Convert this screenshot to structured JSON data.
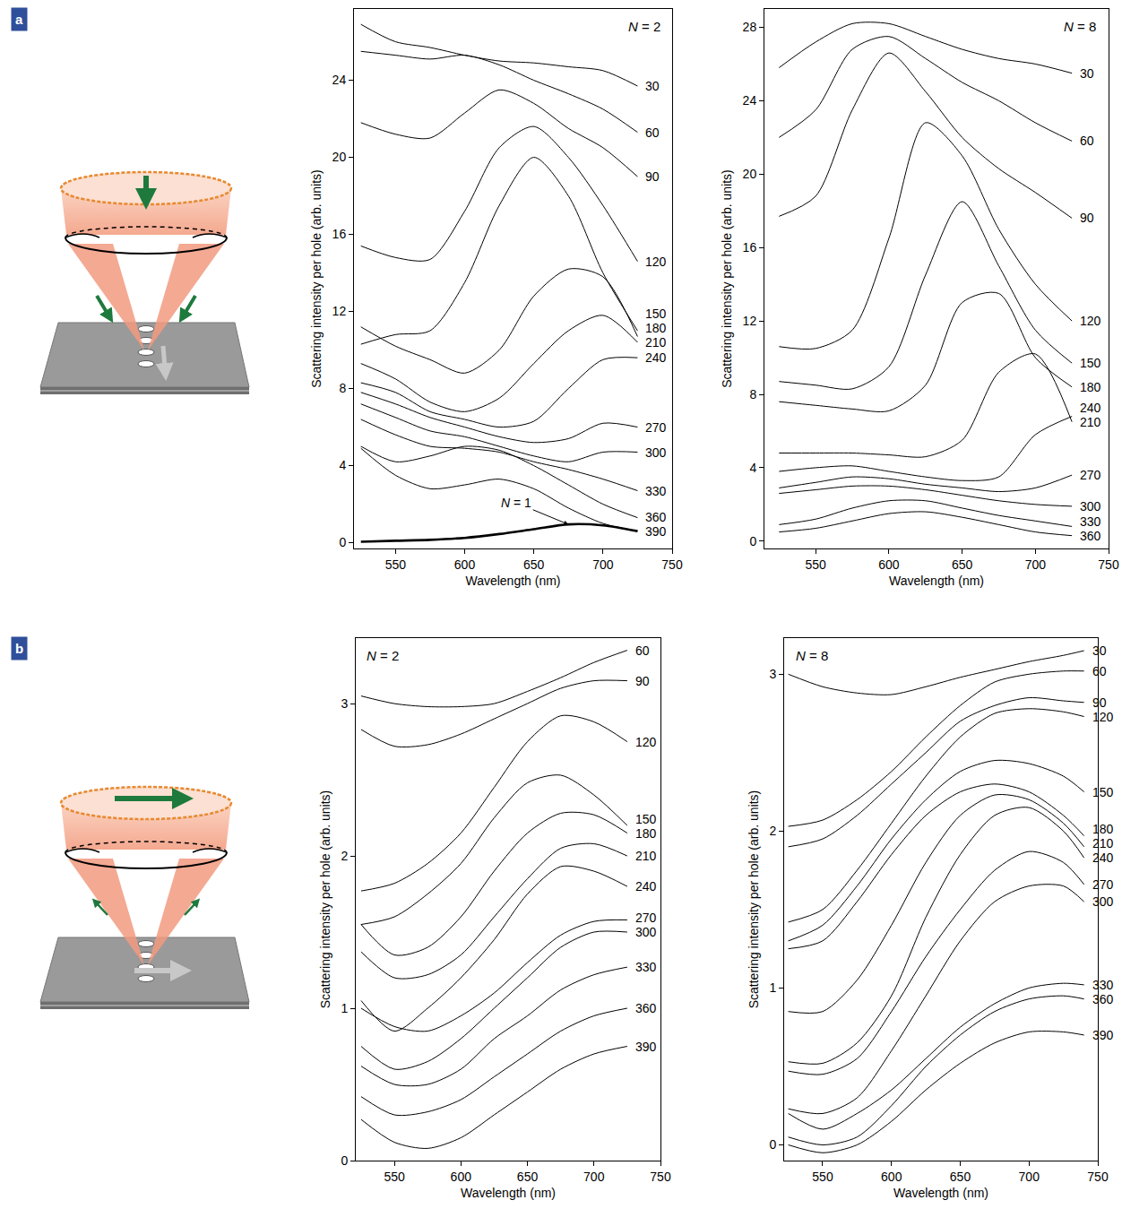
{
  "chart_data": [
    {
      "type": "line",
      "panel": "a",
      "title": "N = 2",
      "x_label": "Wavelength (nm)",
      "y_label": "Scattering intensity per hole (arb. units)",
      "x": [
        525,
        550,
        575,
        600,
        625,
        650,
        675,
        700,
        725
      ],
      "xlim": [
        520,
        750
      ],
      "xticks": [
        550,
        600,
        650,
        700,
        750
      ],
      "ylim": [
        -0.3,
        27.7
      ],
      "yticks": [
        0,
        4,
        8,
        12,
        16,
        20,
        24
      ],
      "grid": false,
      "series": [
        {
          "name": "30",
          "color": "#000000",
          "values": [
            26.9,
            26.0,
            25.7,
            25.3,
            25.0,
            24.9,
            24.7,
            24.5,
            23.7
          ]
        },
        {
          "name": "60",
          "color": "#000000",
          "values": [
            25.5,
            25.3,
            25.1,
            25.3,
            24.8,
            24.0,
            23.3,
            22.5,
            21.3
          ]
        },
        {
          "name": "90",
          "color": "#000000",
          "values": [
            21.8,
            21.2,
            21.0,
            22.3,
            23.5,
            22.8,
            21.5,
            20.5,
            19.0
          ]
        },
        {
          "name": "120",
          "color": "#000000",
          "values": [
            15.4,
            14.8,
            14.7,
            17.2,
            20.5,
            21.6,
            20.0,
            17.5,
            14.6
          ]
        },
        {
          "name": "150",
          "color": "#000000",
          "values": [
            10.3,
            10.8,
            11.0,
            13.5,
            17.5,
            20.0,
            18.0,
            14.0,
            11.0
          ]
        },
        {
          "name": "180",
          "color": "#000000",
          "values": [
            11.2,
            10.2,
            9.5,
            8.8,
            10.0,
            12.8,
            14.2,
            13.8,
            10.7
          ]
        },
        {
          "name": "210",
          "color": "#000000",
          "values": [
            9.3,
            8.5,
            7.3,
            6.8,
            7.5,
            9.3,
            11.0,
            11.8,
            10.4
          ]
        },
        {
          "name": "240",
          "color": "#000000",
          "values": [
            8.3,
            7.8,
            6.8,
            6.4,
            6.0,
            6.3,
            8.0,
            9.5,
            9.6
          ]
        },
        {
          "name": "270",
          "color": "#000000",
          "values": [
            7.8,
            7.2,
            6.5,
            6.0,
            5.5,
            5.2,
            5.4,
            6.2,
            6.0
          ]
        },
        {
          "name": "300",
          "color": "#000000",
          "values": [
            7.2,
            6.5,
            5.8,
            5.5,
            5.0,
            4.5,
            4.2,
            4.7,
            4.7
          ]
        },
        {
          "name": "330",
          "color": "#000000",
          "values": [
            6.4,
            5.6,
            5.0,
            4.9,
            4.7,
            4.2,
            3.8,
            3.3,
            2.7
          ]
        },
        {
          "name": "360",
          "color": "#000000",
          "values": [
            5.0,
            4.2,
            4.5,
            5.0,
            4.8,
            4.0,
            3.0,
            2.0,
            1.3
          ]
        },
        {
          "name": "390",
          "color": "#000000",
          "values": [
            4.9,
            3.5,
            2.8,
            3.0,
            3.3,
            2.8,
            1.8,
            1.0,
            0.6
          ]
        },
        {
          "name": "N = 1",
          "color": "#000000",
          "line_style": "thick",
          "values": [
            0.05,
            0.1,
            0.15,
            0.25,
            0.45,
            0.7,
            0.95,
            0.9,
            0.6
          ]
        }
      ]
    },
    {
      "type": "line",
      "title": "N = 8",
      "x_label": "Wavelength (nm)",
      "y_label": "Scattering intensity per hole (arb. units)",
      "x": [
        525,
        550,
        575,
        600,
        625,
        650,
        675,
        700,
        725
      ],
      "xlim": [
        515,
        750
      ],
      "xticks": [
        550,
        600,
        650,
        700,
        750
      ],
      "ylim": [
        -0.4,
        29
      ],
      "yticks": [
        0,
        4,
        8,
        12,
        16,
        20,
        24,
        28
      ],
      "grid": false,
      "series": [
        {
          "name": "30",
          "color": "#000000",
          "values": [
            25.8,
            27.2,
            28.2,
            28.2,
            27.5,
            26.8,
            26.3,
            26.0,
            25.5
          ]
        },
        {
          "name": "60",
          "color": "#000000",
          "values": [
            22.0,
            23.5,
            26.8,
            27.5,
            26.3,
            25.0,
            24.0,
            22.8,
            21.8
          ]
        },
        {
          "name": "90",
          "color": "#000000",
          "values": [
            17.7,
            18.8,
            23.5,
            26.6,
            24.5,
            22.0,
            20.3,
            19.0,
            17.6
          ]
        },
        {
          "name": "120",
          "color": "#000000",
          "values": [
            10.6,
            10.5,
            11.5,
            16.5,
            22.8,
            21.0,
            17.0,
            14.0,
            12.0
          ]
        },
        {
          "name": "150",
          "color": "#000000",
          "values": [
            8.7,
            8.5,
            8.3,
            9.5,
            14.5,
            18.5,
            15.0,
            11.5,
            9.7
          ]
        },
        {
          "name": "180",
          "color": "#000000",
          "values": [
            7.6,
            7.4,
            7.2,
            7.1,
            8.5,
            13.0,
            13.5,
            10.0,
            8.4
          ]
        },
        {
          "name": "210",
          "color": "#000000",
          "values": [
            4.8,
            4.8,
            4.8,
            4.7,
            4.6,
            5.5,
            9.2,
            10.2,
            6.5
          ]
        },
        {
          "name": "240",
          "color": "#000000",
          "values": [
            3.8,
            4.0,
            4.1,
            3.8,
            3.5,
            3.3,
            3.5,
            5.8,
            6.8
          ]
        },
        {
          "name": "270",
          "color": "#000000",
          "values": [
            2.9,
            3.2,
            3.5,
            3.4,
            3.1,
            2.9,
            2.7,
            2.9,
            3.6
          ]
        },
        {
          "name": "300",
          "color": "#000000",
          "values": [
            2.6,
            2.8,
            3.0,
            3.0,
            2.8,
            2.5,
            2.2,
            2.0,
            1.9
          ]
        },
        {
          "name": "330",
          "color": "#000000",
          "values": [
            0.9,
            1.2,
            1.8,
            2.2,
            2.2,
            1.8,
            1.4,
            1.1,
            0.8
          ]
        },
        {
          "name": "360",
          "color": "#000000",
          "values": [
            0.5,
            0.7,
            1.1,
            1.5,
            1.6,
            1.3,
            0.9,
            0.5,
            0.3
          ]
        }
      ]
    },
    {
      "type": "line",
      "panel": "b",
      "title": "N = 2",
      "x_label": "Wavelength (nm)",
      "y_label": "Scattering intensity per hole (arb. units)",
      "x": [
        525,
        550,
        575,
        600,
        625,
        650,
        675,
        700,
        725
      ],
      "xlim": [
        521,
        750
      ],
      "xticks": [
        550,
        600,
        650,
        700,
        750
      ],
      "ylim": [
        0,
        3.43
      ],
      "yticks": [
        0,
        1,
        2,
        3
      ],
      "grid": false,
      "series": [
        {
          "name": "60",
          "color": "#000000",
          "values": [
            3.05,
            3.0,
            2.98,
            2.98,
            3.0,
            3.08,
            3.17,
            3.27,
            3.35
          ]
        },
        {
          "name": "90",
          "color": "#000000",
          "values": [
            2.83,
            2.72,
            2.73,
            2.8,
            2.9,
            3.0,
            3.1,
            3.15,
            3.15
          ]
        },
        {
          "name": "120",
          "color": "#000000",
          "values": [
            1.77,
            1.82,
            1.95,
            2.15,
            2.45,
            2.75,
            2.92,
            2.88,
            2.75
          ]
        },
        {
          "name": "150",
          "color": "#000000",
          "values": [
            1.55,
            1.6,
            1.75,
            1.95,
            2.25,
            2.48,
            2.53,
            2.4,
            2.2
          ]
        },
        {
          "name": "180",
          "color": "#000000",
          "values": [
            1.55,
            1.35,
            1.4,
            1.6,
            1.9,
            2.15,
            2.28,
            2.27,
            2.15
          ]
        },
        {
          "name": "210",
          "color": "#000000",
          "values": [
            1.37,
            1.2,
            1.22,
            1.35,
            1.6,
            1.85,
            2.05,
            2.08,
            2.0
          ]
        },
        {
          "name": "240",
          "color": "#000000",
          "values": [
            1.05,
            0.85,
            1.0,
            1.2,
            1.45,
            1.75,
            1.93,
            1.9,
            1.8
          ]
        },
        {
          "name": "270",
          "color": "#000000",
          "values": [
            1.0,
            0.88,
            0.85,
            0.95,
            1.1,
            1.3,
            1.48,
            1.57,
            1.58
          ]
        },
        {
          "name": "300",
          "color": "#000000",
          "values": [
            0.75,
            0.6,
            0.65,
            0.8,
            1.0,
            1.2,
            1.4,
            1.5,
            1.5
          ]
        },
        {
          "name": "330",
          "color": "#000000",
          "values": [
            0.62,
            0.5,
            0.5,
            0.6,
            0.8,
            0.95,
            1.12,
            1.22,
            1.27
          ]
        },
        {
          "name": "360",
          "color": "#000000",
          "values": [
            0.42,
            0.3,
            0.32,
            0.4,
            0.55,
            0.7,
            0.85,
            0.95,
            1.0
          ]
        },
        {
          "name": "390",
          "color": "#000000",
          "values": [
            0.27,
            0.12,
            0.08,
            0.15,
            0.3,
            0.45,
            0.6,
            0.7,
            0.75
          ]
        }
      ]
    },
    {
      "type": "line",
      "title": "N = 8",
      "x_label": "Wavelength (nm)",
      "y_label": "Scattering intensity per hole (arb. units)",
      "x": [
        525,
        550,
        575,
        600,
        625,
        650,
        675,
        700,
        725,
        740
      ],
      "xlim": [
        522,
        750
      ],
      "xticks": [
        550,
        600,
        650,
        700,
        750
      ],
      "ylim": [
        -0.1,
        3.23
      ],
      "yticks": [
        0,
        1,
        2,
        3
      ],
      "grid": false,
      "series": [
        {
          "name": "30",
          "color": "#000000",
          "values": [
            3.0,
            2.92,
            2.88,
            2.87,
            2.92,
            2.98,
            3.03,
            3.08,
            3.12,
            3.15
          ]
        },
        {
          "name": "60",
          "color": "#000000",
          "values": [
            2.03,
            2.07,
            2.2,
            2.38,
            2.6,
            2.8,
            2.95,
            3.0,
            3.02,
            3.02
          ]
        },
        {
          "name": "90",
          "color": "#000000",
          "values": [
            1.9,
            1.95,
            2.1,
            2.3,
            2.5,
            2.7,
            2.8,
            2.85,
            2.83,
            2.82
          ]
        },
        {
          "name": "120",
          "color": "#000000",
          "values": [
            1.42,
            1.5,
            1.75,
            2.05,
            2.35,
            2.6,
            2.75,
            2.78,
            2.76,
            2.73
          ]
        },
        {
          "name": "150",
          "color": "#000000",
          "values": [
            1.3,
            1.4,
            1.65,
            1.95,
            2.2,
            2.38,
            2.45,
            2.43,
            2.35,
            2.25
          ]
        },
        {
          "name": "180",
          "color": "#000000",
          "values": [
            1.25,
            1.3,
            1.55,
            1.85,
            2.1,
            2.25,
            2.3,
            2.25,
            2.1,
            1.97
          ]
        },
        {
          "name": "210",
          "color": "#000000",
          "values": [
            0.85,
            0.85,
            1.05,
            1.4,
            1.8,
            2.1,
            2.23,
            2.2,
            2.05,
            1.9
          ]
        },
        {
          "name": "240",
          "color": "#000000",
          "values": [
            0.53,
            0.52,
            0.65,
            0.95,
            1.45,
            1.85,
            2.1,
            2.15,
            2.0,
            1.83
          ]
        },
        {
          "name": "270",
          "color": "#000000",
          "values": [
            0.47,
            0.45,
            0.55,
            0.85,
            1.2,
            1.5,
            1.75,
            1.87,
            1.8,
            1.66
          ]
        },
        {
          "name": "300",
          "color": "#000000",
          "values": [
            0.23,
            0.2,
            0.3,
            0.6,
            0.95,
            1.3,
            1.55,
            1.65,
            1.65,
            1.55
          ]
        },
        {
          "name": "330",
          "color": "#000000",
          "values": [
            0.2,
            0.1,
            0.2,
            0.35,
            0.55,
            0.75,
            0.9,
            1.0,
            1.03,
            1.02
          ]
        },
        {
          "name": "360",
          "color": "#000000",
          "values": [
            0.05,
            0.0,
            0.05,
            0.25,
            0.5,
            0.7,
            0.85,
            0.93,
            0.95,
            0.93
          ]
        },
        {
          "name": "390",
          "color": "#000000",
          "values": [
            0.0,
            -0.05,
            0.0,
            0.15,
            0.35,
            0.52,
            0.65,
            0.72,
            0.72,
            0.7
          ]
        }
      ]
    }
  ]
}
